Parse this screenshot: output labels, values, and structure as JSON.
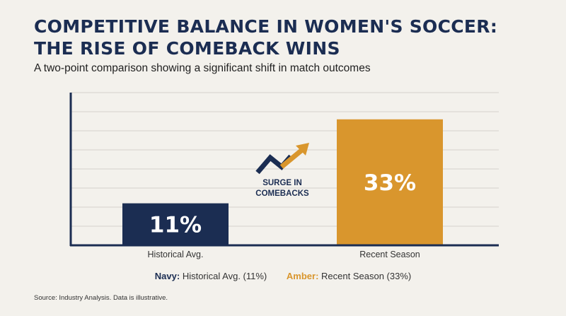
{
  "header": {
    "title_line1": "COMPETITIVE BALANCE IN WOMEN'S SOCCER:",
    "title_line2": "THE RISE OF COMEBACK WINS",
    "subtitle": "A two-point comparison showing a significant shift in match outcomes"
  },
  "chart_data": {
    "type": "bar",
    "title": "COMPETITIVE BALANCE IN WOMEN'S SOCCER: THE RISE OF COMEBACK WINS",
    "subtitle": "A two-point comparison showing a significant shift in match outcomes",
    "categories": [
      "Historical Avg.",
      "Recent Season"
    ],
    "values": [
      11,
      33
    ],
    "value_labels": [
      "11%",
      "33%"
    ],
    "colors": [
      "#1b2d52",
      "#d9962d"
    ],
    "ylim": [
      0,
      40
    ],
    "grid": true,
    "xlabel": "",
    "ylabel": "",
    "annotation": {
      "lines": [
        "SURGE IN",
        "COMEBACKS"
      ],
      "icon": "trend-up-arrow-icon",
      "colors": [
        "#1b2d52",
        "#d9962d"
      ]
    }
  },
  "legend": {
    "items": [
      {
        "key": "Navy:",
        "text": "Historical Avg. (11%)",
        "color": "#1b2d52"
      },
      {
        "key": "Amber:",
        "text": "Recent Season (33%)",
        "color": "#d9962d"
      }
    ]
  },
  "source": "Source: Industry Analysis. Data is illustrative."
}
